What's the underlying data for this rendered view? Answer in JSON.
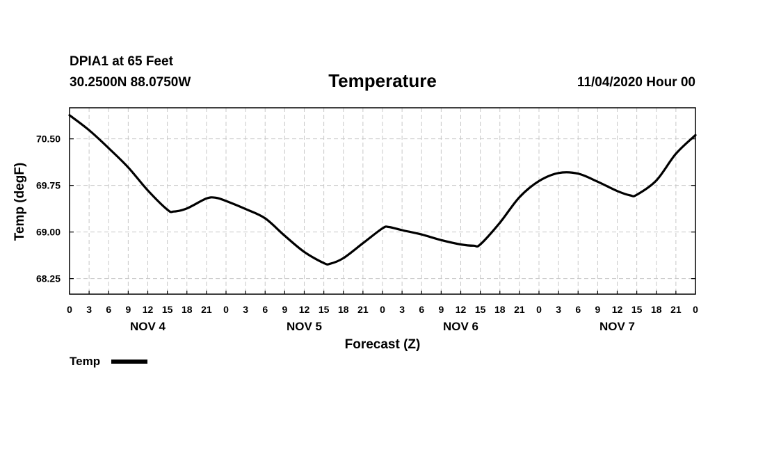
{
  "header": {
    "station": "DPIA1 at 65 Feet",
    "coords": "30.2500N 88.0750W",
    "run": "11/04/2020 Hour 00"
  },
  "chart_data": {
    "type": "line",
    "title": "Temperature",
    "xlabel": "Forecast (Z)",
    "ylabel": "Temp (degF)",
    "x_unit": "forecast hour from 11/04/2020 00Z",
    "xlim": [
      0,
      96
    ],
    "ylim": [
      68.0,
      71.0
    ],
    "grid": true,
    "y_ticks": [
      "68.25",
      "69.00",
      "69.75",
      "70.50"
    ],
    "y_tick_values": [
      68.25,
      69.0,
      69.75,
      70.5
    ],
    "x_tick_labels": [
      "0",
      "3",
      "6",
      "9",
      "12",
      "15",
      "18",
      "21",
      "0",
      "3",
      "6",
      "9",
      "12",
      "15",
      "18",
      "21",
      "0",
      "3",
      "6",
      "9",
      "12",
      "15",
      "18",
      "21",
      "0",
      "3",
      "6",
      "9",
      "12",
      "15",
      "18",
      "21",
      "0"
    ],
    "day_labels": [
      "NOV 4",
      "NOV 5",
      "NOV 6",
      "NOV 7"
    ],
    "legend_position": "bottom-left",
    "series": [
      {
        "name": "Temp",
        "color": "#000000",
        "x": [
          0,
          3,
          6,
          9,
          12,
          15,
          16,
          18,
          21,
          22.5,
          24,
          27,
          30,
          33,
          36,
          39,
          40,
          42,
          45,
          48,
          49,
          51,
          54,
          57,
          60,
          62,
          63,
          66,
          69,
          72,
          75,
          78,
          81,
          84,
          86,
          87,
          90,
          93,
          96
        ],
        "y": [
          70.88,
          70.64,
          70.35,
          70.04,
          69.67,
          69.36,
          69.33,
          69.38,
          69.54,
          69.55,
          69.5,
          69.37,
          69.22,
          68.94,
          68.68,
          68.5,
          68.49,
          68.58,
          68.82,
          69.06,
          69.08,
          69.03,
          68.96,
          68.87,
          68.8,
          68.78,
          68.8,
          69.15,
          69.56,
          69.82,
          69.95,
          69.94,
          69.81,
          69.66,
          69.59,
          69.6,
          69.83,
          70.26,
          70.56
        ]
      }
    ]
  }
}
